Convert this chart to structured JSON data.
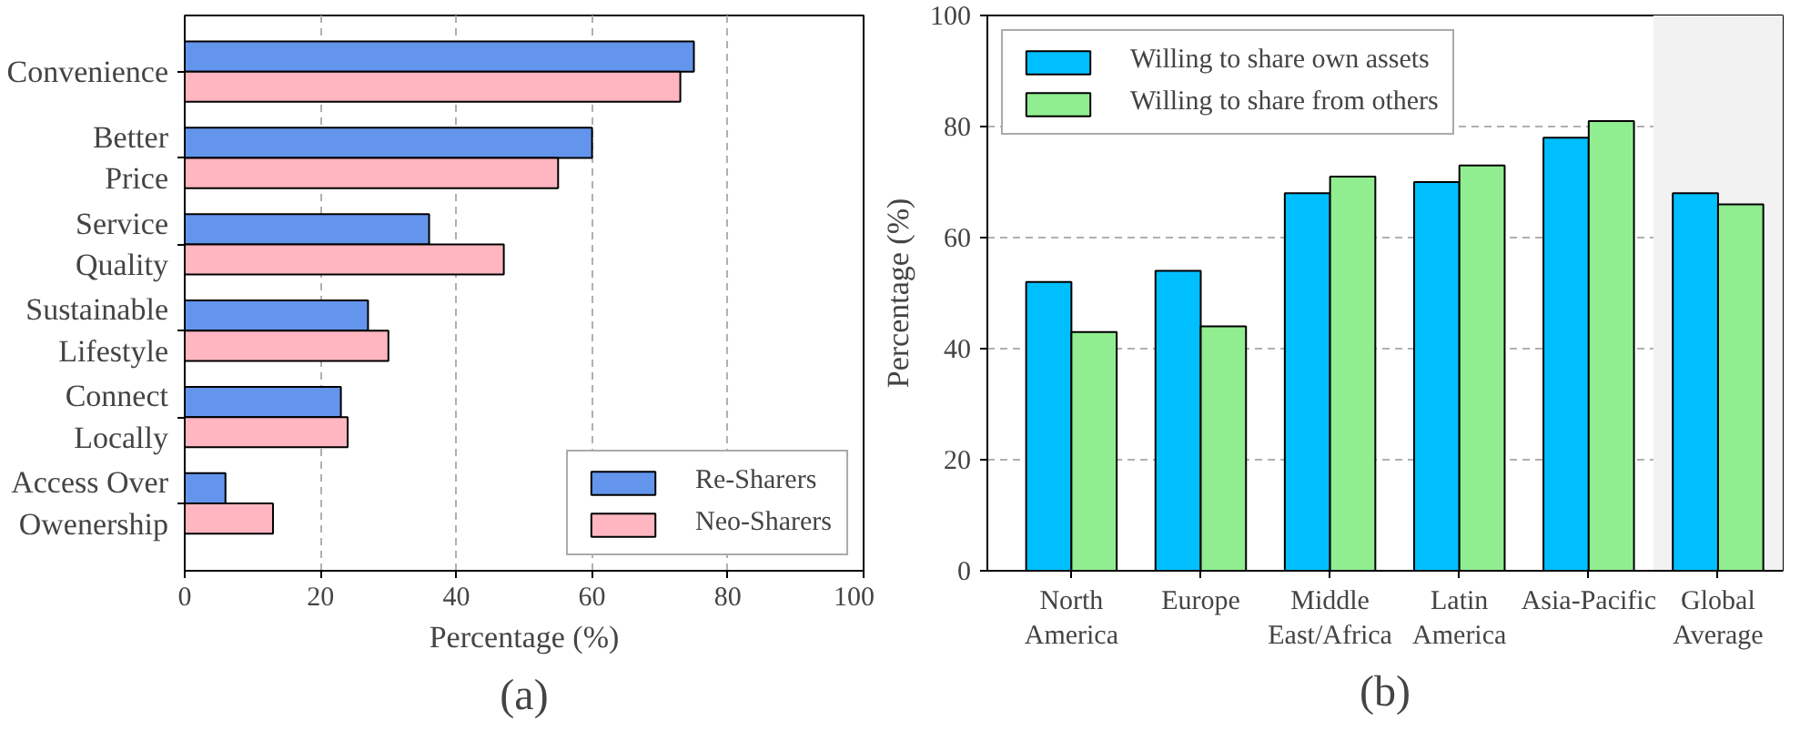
{
  "chart_data": [
    {
      "type": "bar",
      "orientation": "horizontal",
      "categories": [
        "Convenience",
        "Better\nPrice",
        "Service\nQuality",
        "Sustainable\nLifestyle",
        "Connect\nLocally",
        "Access Over\nOwenership"
      ],
      "series": [
        {
          "name": "Re-Sharers",
          "color": "#6495ed",
          "values": [
            75,
            60,
            36,
            27,
            23,
            6
          ]
        },
        {
          "name": "Neo-Sharers",
          "color": "#ffb6c1",
          "values": [
            73,
            55,
            47,
            30,
            24,
            13
          ]
        }
      ],
      "xlabel": "Percentage (%)",
      "xlim": [
        0,
        100
      ],
      "xticks": [
        0,
        20,
        40,
        60,
        80,
        100
      ],
      "grid": "x",
      "legend": "bottom right",
      "annotations": [
        "(a)"
      ]
    },
    {
      "type": "bar",
      "categories": [
        "North\nAmerica",
        "Europe",
        "Middle\nEast/Africa",
        "Latin\nAmerica",
        "Asia-Pacific",
        "Global\nAverage"
      ],
      "series": [
        {
          "name": "Willing to share own assets",
          "color": "#00bfff",
          "values": [
            52,
            54,
            68,
            70,
            78,
            68
          ]
        },
        {
          "name": "Willing to share from others",
          "color": "#90ee90",
          "values": [
            43,
            44,
            71,
            73,
            81,
            66
          ]
        }
      ],
      "ylabel": "Percentage (%)",
      "ylim": [
        0,
        100
      ],
      "yticks": [
        0,
        20,
        40,
        60,
        80,
        100
      ],
      "grid": "y",
      "legend": "top left",
      "bands": [
        {
          "axis": "x",
          "from": "Global\nAverage",
          "to": "Global\nAverage",
          "color": "#f2f2f2"
        }
      ],
      "annotations": [
        "(b)"
      ]
    }
  ]
}
